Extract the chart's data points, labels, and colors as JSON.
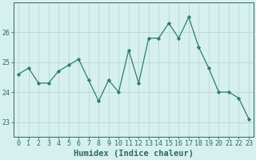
{
  "x": [
    0,
    1,
    2,
    3,
    4,
    5,
    6,
    7,
    8,
    9,
    10,
    11,
    12,
    13,
    14,
    15,
    16,
    17,
    18,
    19,
    20,
    21,
    22,
    23
  ],
  "y": [
    24.6,
    24.8,
    24.3,
    24.3,
    24.7,
    24.9,
    25.1,
    24.4,
    23.7,
    24.4,
    24.0,
    25.4,
    24.3,
    25.8,
    25.8,
    26.3,
    25.8,
    26.5,
    25.5,
    24.8,
    24.0,
    24.0,
    23.8,
    23.1
  ],
  "line_color": "#2e7d6e",
  "marker": "D",
  "marker_size": 2.2,
  "bg_color": "#d6f0ef",
  "grid_color": "#b8d8d5",
  "xlabel": "Humidex (Indice chaleur)",
  "ylim": [
    22.5,
    27.0
  ],
  "yticks": [
    23,
    24,
    25,
    26
  ],
  "xticks": [
    0,
    1,
    2,
    3,
    4,
    5,
    6,
    7,
    8,
    9,
    10,
    11,
    12,
    13,
    14,
    15,
    16,
    17,
    18,
    19,
    20,
    21,
    22,
    23
  ],
  "xlabel_fontsize": 7.5,
  "tick_fontsize": 6.0,
  "axis_color": "#2e6b5e",
  "linewidth": 0.9
}
